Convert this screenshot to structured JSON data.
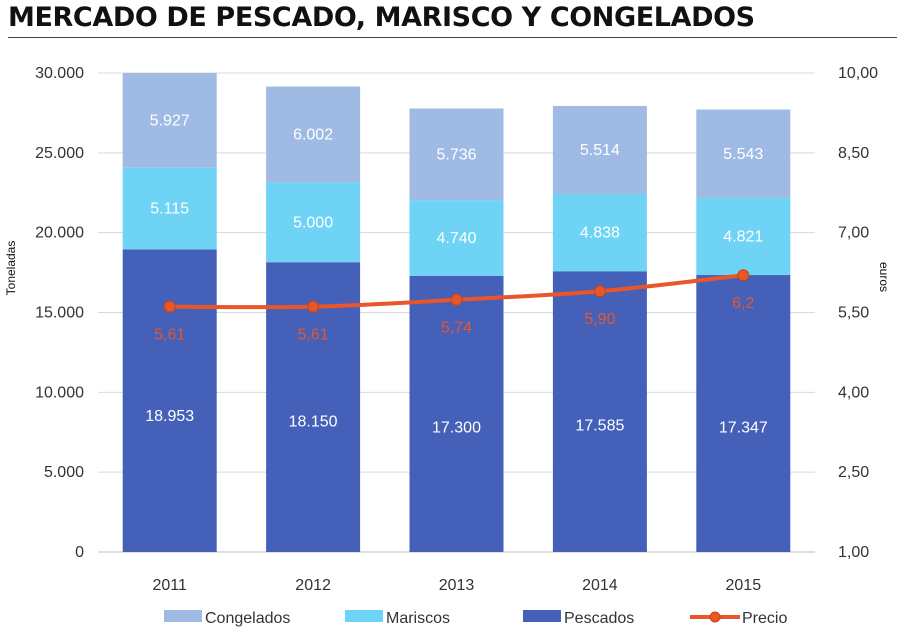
{
  "title": "MERCADO DE PESCADO, MARISCO Y CONGELADOS",
  "chart_data": {
    "type": "bar",
    "stacked": true,
    "categories": [
      "2011",
      "2012",
      "2013",
      "2014",
      "2015"
    ],
    "series": [
      {
        "name": "Pescados",
        "values": [
          18953,
          18150,
          17300,
          17585,
          17347
        ],
        "labels": [
          "18.953",
          "18.150",
          "17.300",
          "17.585",
          "17.347"
        ],
        "color": "#4560b8"
      },
      {
        "name": "Mariscos",
        "values": [
          5115,
          5000,
          4740,
          4838,
          4821
        ],
        "labels": [
          "5.115",
          "5.000",
          "4.740",
          "4.838",
          "4.821"
        ],
        "color": "#6fd3f5"
      },
      {
        "name": "Congelados",
        "values": [
          5927,
          6002,
          5736,
          5514,
          5543
        ],
        "labels": [
          "5.927",
          "6.002",
          "5.736",
          "5.514",
          "5.543"
        ],
        "color": "#a0bbe3"
      }
    ],
    "line_series": {
      "name": "Precio",
      "axis": "right",
      "values": [
        5.61,
        5.61,
        5.74,
        5.9,
        6.2
      ],
      "labels": [
        "5,61",
        "5,61",
        "5,74",
        "5,90",
        "6,2"
      ],
      "color": "#e8562a",
      "type": "line"
    },
    "ylabel": "Toneladas",
    "ylabel_right": "euros",
    "ylim": [
      0,
      30000
    ],
    "y_ticks": [
      "0",
      "5.000",
      "10.000",
      "15.000",
      "20.000",
      "25.000",
      "30.000"
    ],
    "ylim_right": [
      1.0,
      10.0
    ],
    "y_ticks_right": [
      "1,00",
      "2,50",
      "4,00",
      "5,50",
      "7,00",
      "8,50",
      "10,00"
    ],
    "grid": true,
    "legend": {
      "position": "bottom",
      "items": [
        "Congelados",
        "Mariscos",
        "Pescados",
        "Precio"
      ]
    }
  }
}
